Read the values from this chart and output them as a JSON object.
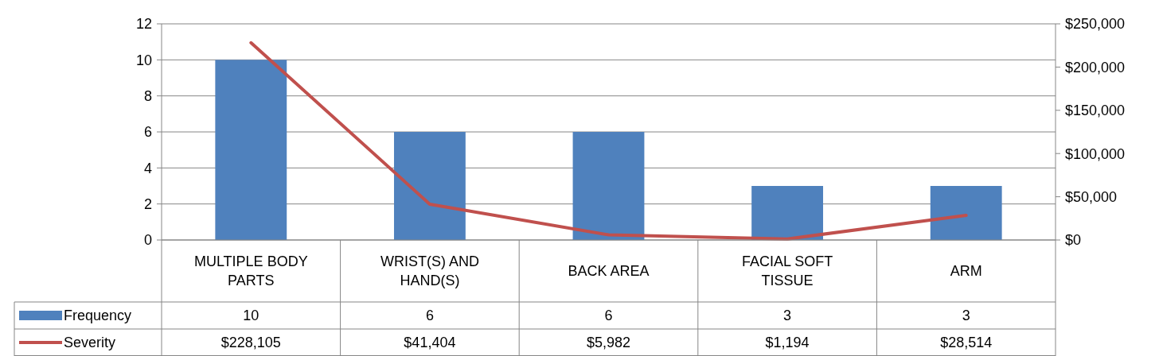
{
  "chart_data": {
    "type": "bar",
    "categories": [
      "MULTIPLE BODY PARTS",
      "WRIST(S) AND HAND(S)",
      "BACK AREA",
      "FACIAL SOFT TISSUE",
      "ARM"
    ],
    "series": [
      {
        "name": "Frequency",
        "color": "#4f81bd",
        "values": [
          10,
          6,
          6,
          3,
          3
        ],
        "value_labels": [
          "10",
          "6",
          "6",
          "3",
          "3"
        ]
      },
      {
        "name": "Severity",
        "type": "line",
        "axis": "y2",
        "color": "#c0504d",
        "values": [
          228105,
          41404,
          5982,
          1194,
          28514
        ],
        "value_labels": [
          "$228,105",
          "$41,404",
          "$5,982",
          "$1,194",
          "$28,514"
        ]
      }
    ],
    "ylim": [
      0,
      12
    ],
    "yticks": [
      0,
      2,
      4,
      6,
      8,
      10,
      12
    ],
    "y2lim": [
      0,
      250000
    ],
    "y2ticks": [
      {
        "value": 0,
        "label": "$0"
      },
      {
        "value": 50000,
        "label": "$50,000"
      },
      {
        "value": 100000,
        "label": "$100,000"
      },
      {
        "value": 150000,
        "label": "$150,000"
      },
      {
        "value": 200000,
        "label": "$200,000"
      },
      {
        "value": 250000,
        "label": "$250,000"
      }
    ],
    "grid": "y",
    "legend": "bottom",
    "marker": "none",
    "line_style": "solid"
  }
}
